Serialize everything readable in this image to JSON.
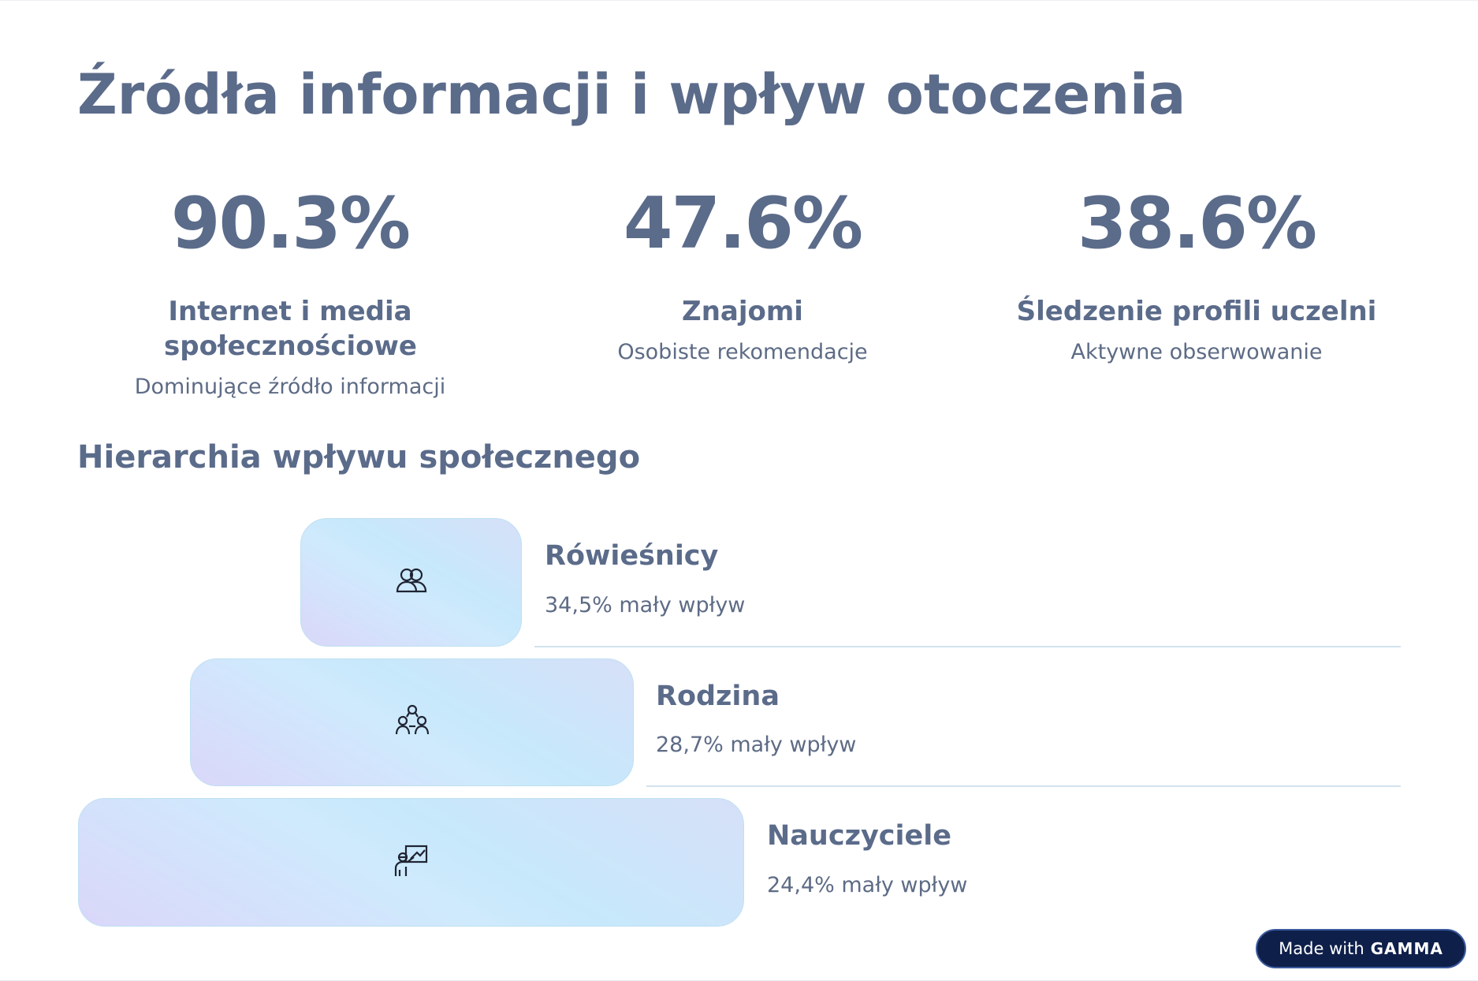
{
  "title": "Źródła informacji i wpływ otoczenia",
  "stats": [
    {
      "value": "90.3%",
      "heading": "Internet i media społecznościowe",
      "sub": "Dominujące źródło informacji"
    },
    {
      "value": "47.6%",
      "heading": "Znajomi",
      "sub": "Osobiste rekomendacje"
    },
    {
      "value": "38.6%",
      "heading": "Śledzenie profili uczelni",
      "sub": "Aktywne obserwowanie"
    }
  ],
  "section_title": "Hierarchia wpływu społecznego",
  "hierarchy": [
    {
      "label": "Rówieśnicy",
      "desc": "34,5% mały wpływ",
      "icon": "people-icon"
    },
    {
      "label": "Rodzina",
      "desc": "28,7% mały wpływ",
      "icon": "family-icon"
    },
    {
      "label": "Nauczyciele",
      "desc": "24,4% mały wpływ",
      "icon": "teacher-icon"
    }
  ],
  "badge": {
    "prefix": "Made with",
    "brand": "GAMMA"
  },
  "colors": {
    "text": "#5b6b8a",
    "badge_bg": "#0e1f4a",
    "rule": "#d3e2ee"
  }
}
